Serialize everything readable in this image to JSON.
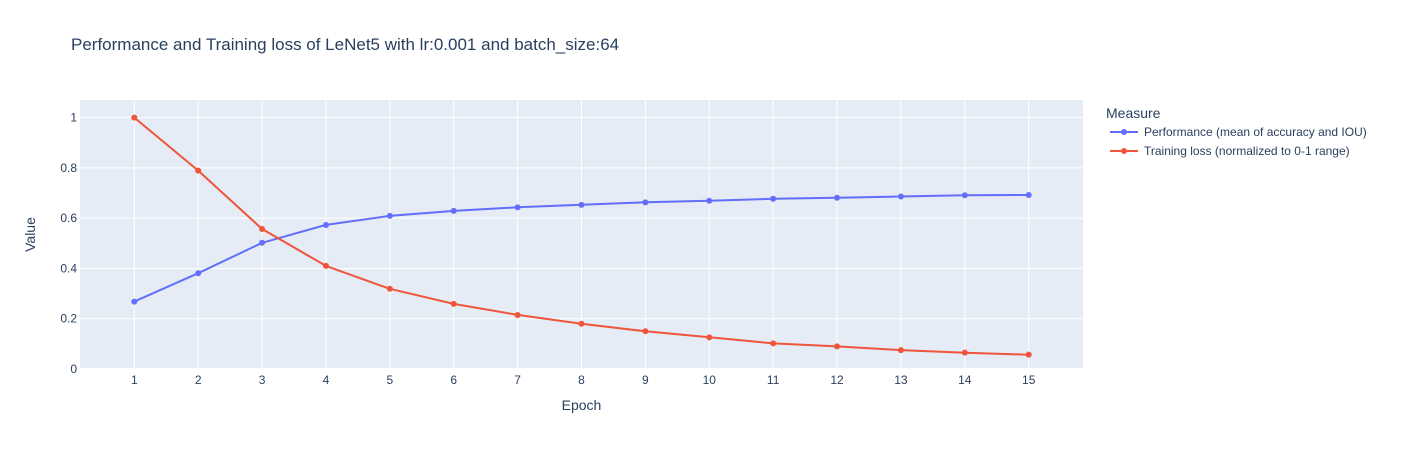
{
  "chart_data": {
    "type": "line",
    "title": "Performance and Training loss of LeNet5 with lr:0.001 and batch_size:64",
    "xlabel": "Epoch",
    "ylabel": "Value",
    "x": [
      1,
      2,
      3,
      4,
      5,
      6,
      7,
      8,
      9,
      10,
      11,
      12,
      13,
      14,
      15
    ],
    "xlim": [
      0.15,
      15.85
    ],
    "ylim": [
      0,
      1.07
    ],
    "yticks": [
      0,
      0.2,
      0.4,
      0.6,
      0.8,
      1
    ],
    "ytick_labels": [
      "0",
      "0.2",
      "0.4",
      "0.6",
      "0.8",
      "1"
    ],
    "grid": true,
    "legend": {
      "title": "Measure",
      "placement": "right"
    },
    "series": [
      {
        "name": "Performance (mean of accuracy and IOU)",
        "color": "#636efa",
        "values": [
          0.268,
          0.381,
          0.502,
          0.573,
          0.609,
          0.629,
          0.643,
          0.653,
          0.663,
          0.669,
          0.677,
          0.681,
          0.686,
          0.691,
          0.692
        ]
      },
      {
        "name": "Training loss (normalized to 0-1 range)",
        "color": "#ef553b",
        "values": [
          1.0,
          0.789,
          0.557,
          0.41,
          0.319,
          0.259,
          0.215,
          0.18,
          0.15,
          0.126,
          0.102,
          0.09,
          0.075,
          0.065,
          0.057
        ]
      }
    ]
  },
  "colors": {
    "plot_bg": "#e5ecf6",
    "grid": "#ffffff",
    "text": "#2a3f5f"
  }
}
